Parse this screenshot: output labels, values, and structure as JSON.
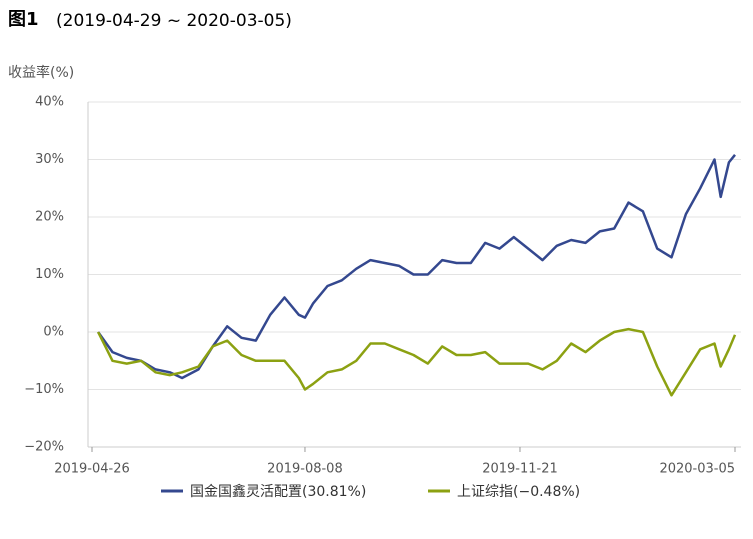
{
  "chart_data": {
    "type": "line",
    "title": "图1",
    "subtitle": "(2019-04-29 ~ 2020-03-05)",
    "y_label": "收益率(%)",
    "x": [
      "2019-04-29",
      "2019-05-06",
      "2019-05-13",
      "2019-05-20",
      "2019-05-27",
      "2019-06-03",
      "2019-06-09",
      "2019-06-17",
      "2019-06-24",
      "2019-07-01",
      "2019-07-08",
      "2019-07-15",
      "2019-07-22",
      "2019-07-29",
      "2019-08-05",
      "2019-08-08",
      "2019-08-12",
      "2019-08-19",
      "2019-08-26",
      "2019-09-02",
      "2019-09-09",
      "2019-09-16",
      "2019-09-23",
      "2019-09-30",
      "2019-10-07",
      "2019-10-14",
      "2019-10-21",
      "2019-10-28",
      "2019-11-04",
      "2019-11-11",
      "2019-11-18",
      "2019-11-25",
      "2019-12-02",
      "2019-12-09",
      "2019-12-16",
      "2019-12-23",
      "2019-12-30",
      "2020-01-06",
      "2020-01-13",
      "2020-01-20",
      "2020-01-27",
      "2020-02-03",
      "2020-02-10",
      "2020-02-17",
      "2020-02-24",
      "2020-02-27",
      "2020-03-02",
      "2020-03-05"
    ],
    "series": [
      {
        "name": "国金国鑫灵活配置(30.81%)",
        "color": "#34488f",
        "values": [
          0,
          -3.5,
          -4.5,
          -5,
          -6.5,
          -7,
          -8,
          -6.5,
          -2.5,
          1,
          -1,
          -1.5,
          3,
          6,
          3,
          2.5,
          5,
          8,
          9,
          11,
          12.5,
          12,
          11.5,
          10,
          10,
          12.5,
          12,
          12,
          15.5,
          14.5,
          16.5,
          14.5,
          12.5,
          15,
          16,
          15.5,
          17.5,
          18,
          22.5,
          21,
          14.5,
          13,
          20.5,
          25,
          30,
          23.5,
          29.5,
          30.81
        ]
      },
      {
        "name": "上证综指(−0.48%)",
        "color": "#8ca112",
        "values": [
          0,
          -5,
          -5.5,
          -5,
          -7,
          -7.5,
          -7,
          -6,
          -2.5,
          -1.5,
          -4,
          -5,
          -5,
          -5,
          -8,
          -10,
          -9,
          -7,
          -6.5,
          -5,
          -2,
          -2,
          -3,
          -4,
          -5.5,
          -2.5,
          -4,
          -4,
          -3.5,
          -5.5,
          -5.5,
          -5.5,
          -6.5,
          -5,
          -2,
          -3.5,
          -1.5,
          0,
          0.5,
          0,
          -6,
          -11,
          -7,
          -3,
          -2,
          -6,
          -3,
          -0.48
        ]
      }
    ],
    "xlim": [
      "2019-04-26",
      "2020-03-05"
    ],
    "xticks": [
      "2019-04-26",
      "2019-08-08",
      "2019-11-21",
      "2020-03-05"
    ],
    "ylim": [
      -20,
      40
    ],
    "yticks": [
      {
        "value": -20,
        "label": "−20%"
      },
      {
        "value": -10,
        "label": "−10%"
      },
      {
        "value": 0,
        "label": "0%"
      },
      {
        "value": 10,
        "label": "10%"
      },
      {
        "value": 20,
        "label": "20%"
      },
      {
        "value": 30,
        "label": "30%"
      },
      {
        "value": 40,
        "label": "40%"
      }
    ],
    "grid": true,
    "legend": "bottom"
  }
}
